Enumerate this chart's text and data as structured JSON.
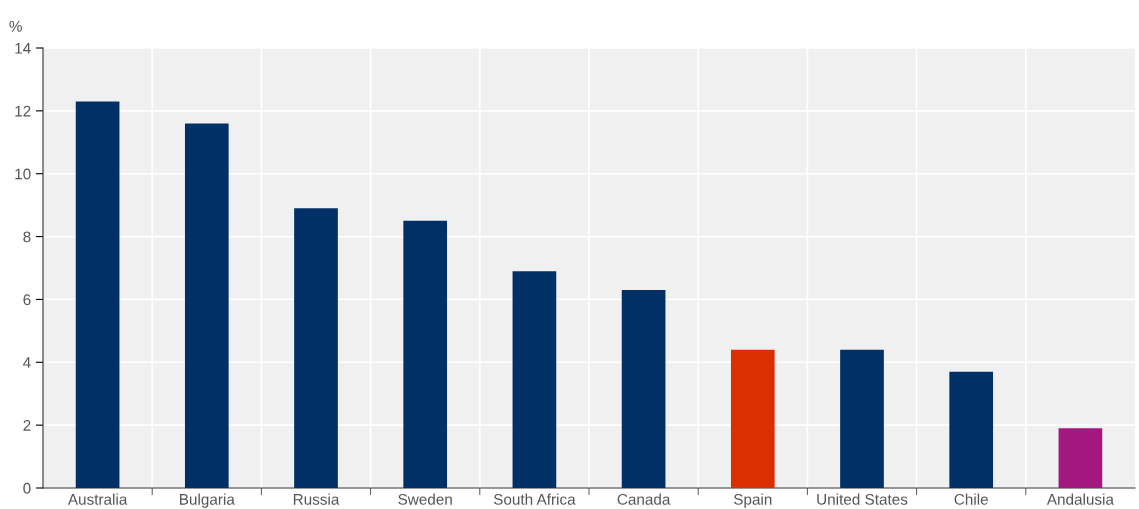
{
  "chart_data": {
    "type": "bar",
    "ylabel": "%",
    "categories": [
      "Australia",
      "Bulgaria",
      "Russia",
      "Sweden",
      "South Africa",
      "Canada",
      "Spain",
      "United States",
      "Chile",
      "Andalusia"
    ],
    "values": [
      12.3,
      11.6,
      8.9,
      8.5,
      6.9,
      6.3,
      4.4,
      4.4,
      3.7,
      1.9
    ],
    "colors": [
      "#003066",
      "#003066",
      "#003066",
      "#003066",
      "#003066",
      "#003066",
      "#dc2f00",
      "#003066",
      "#003066",
      "#a4177f"
    ],
    "ylim": [
      0,
      14
    ],
    "yticks": [
      0,
      2,
      4,
      6,
      8,
      10,
      12,
      14
    ],
    "grid": true
  }
}
